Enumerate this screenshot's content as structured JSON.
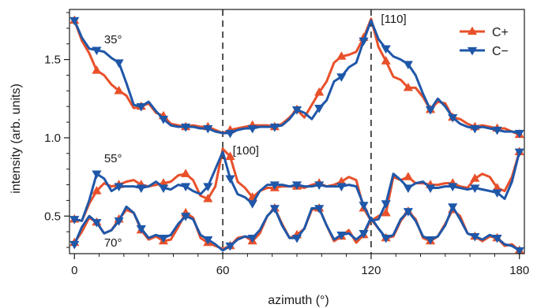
{
  "chart_data": {
    "type": "line",
    "xlabel": "azimuth (°)",
    "ylabel": "intensity (arb. units)",
    "xlim": [
      -2,
      182
    ],
    "ylim": [
      0.26,
      1.82
    ],
    "xticks": [
      0,
      60,
      120,
      180
    ],
    "yticks": [
      0.5,
      1.0,
      1.5
    ],
    "xtick_labels": [
      "0",
      "60",
      "120",
      "180"
    ],
    "ytick_labels": [
      "0.5",
      "1.0",
      "1.5"
    ],
    "grid": false,
    "legend_position": "top-right",
    "colors": {
      "c_plus": "#e8502a",
      "c_minus": "#1f57a8"
    },
    "vlines": [
      60,
      120
    ],
    "annotations": [
      {
        "text": "35°",
        "x": 12,
        "y": 1.63
      },
      {
        "text": "55°",
        "x": 12,
        "y": 0.87
      },
      {
        "text": "70°",
        "x": 12,
        "y": 0.33
      },
      {
        "text": "[100]",
        "x": 64,
        "y": 0.92
      },
      {
        "text": "[110]",
        "x": 124,
        "y": 1.76
      }
    ],
    "series": [
      {
        "name": "C+",
        "color": "#e8502a",
        "marker": "triangle-up",
        "groups": [
          {
            "label": "35°",
            "x": [
              0,
              3,
              6,
              9,
              12,
              15,
              18,
              21,
              24,
              27,
              30,
              33,
              36,
              39,
              42,
              45,
              48,
              51,
              54,
              57,
              60,
              63,
              66,
              69,
              72,
              75,
              78,
              81,
              84,
              87,
              90,
              93,
              96,
              99,
              102,
              105,
              108,
              111,
              114,
              117,
              120,
              123,
              126,
              129,
              132,
              135,
              138,
              141,
              144,
              147,
              150,
              153,
              156,
              159,
              162,
              165,
              168,
              171,
              174,
              177,
              180
            ],
            "y": [
              1.75,
              1.62,
              1.54,
              1.43,
              1.4,
              1.34,
              1.3,
              1.27,
              1.19,
              1.2,
              1.22,
              1.16,
              1.14,
              1.09,
              1.08,
              1.07,
              1.08,
              1.07,
              1.07,
              1.05,
              1.03,
              1.05,
              1.06,
              1.07,
              1.08,
              1.08,
              1.08,
              1.07,
              1.09,
              1.13,
              1.18,
              1.13,
              1.21,
              1.29,
              1.36,
              1.48,
              1.52,
              1.53,
              1.55,
              1.64,
              1.76,
              1.58,
              1.49,
              1.39,
              1.37,
              1.32,
              1.32,
              1.26,
              1.18,
              1.23,
              1.22,
              1.13,
              1.12,
              1.09,
              1.07,
              1.08,
              1.07,
              1.06,
              1.06,
              1.04,
              1.02
            ]
          },
          {
            "label": "55°",
            "x": [
              0,
              3,
              6,
              9,
              12,
              15,
              18,
              21,
              24,
              27,
              30,
              33,
              36,
              39,
              42,
              45,
              48,
              51,
              54,
              57,
              60,
              63,
              66,
              69,
              72,
              75,
              78,
              81,
              84,
              87,
              90,
              93,
              96,
              99,
              102,
              105,
              108,
              111,
              114,
              117,
              120,
              123,
              126,
              129,
              132,
              135,
              138,
              141,
              144,
              147,
              150,
              153,
              156,
              159,
              162,
              165,
              168,
              171,
              174,
              177,
              180
            ],
            "y": [
              0.48,
              0.47,
              0.58,
              0.66,
              0.71,
              0.69,
              0.7,
              0.72,
              0.73,
              0.7,
              0.69,
              0.7,
              0.71,
              0.72,
              0.76,
              0.77,
              0.73,
              0.63,
              0.61,
              0.69,
              0.93,
              0.88,
              0.72,
              0.68,
              0.62,
              0.66,
              0.68,
              0.68,
              0.69,
              0.69,
              0.69,
              0.68,
              0.7,
              0.71,
              0.69,
              0.7,
              0.72,
              0.75,
              0.73,
              0.55,
              0.47,
              0.5,
              0.52,
              0.75,
              0.73,
              0.75,
              0.71,
              0.71,
              0.7,
              0.7,
              0.71,
              0.71,
              0.69,
              0.68,
              0.74,
              0.77,
              0.75,
              0.68,
              0.66,
              0.75,
              0.91
            ]
          },
          {
            "label": "70°",
            "x": [
              0,
              3,
              6,
              9,
              12,
              15,
              18,
              21,
              24,
              27,
              30,
              33,
              36,
              39,
              42,
              45,
              48,
              51,
              54,
              57,
              60,
              63,
              66,
              69,
              72,
              75,
              78,
              81,
              84,
              87,
              90,
              93,
              96,
              99,
              102,
              105,
              108,
              111,
              114,
              117,
              120,
              123,
              126,
              129,
              132,
              135,
              138,
              141,
              144,
              147,
              150,
              153,
              156,
              159,
              162,
              165,
              168,
              171,
              174,
              177,
              180
            ],
            "y": [
              0.33,
              0.4,
              0.49,
              0.46,
              0.39,
              0.41,
              0.48,
              0.54,
              0.52,
              0.41,
              0.35,
              0.37,
              0.34,
              0.35,
              0.43,
              0.52,
              0.49,
              0.36,
              0.33,
              0.31,
              0.29,
              0.31,
              0.36,
              0.37,
              0.34,
              0.39,
              0.5,
              0.55,
              0.45,
              0.36,
              0.38,
              0.42,
              0.54,
              0.55,
              0.44,
              0.34,
              0.37,
              0.41,
              0.33,
              0.38,
              0.48,
              0.42,
              0.36,
              0.37,
              0.47,
              0.53,
              0.48,
              0.36,
              0.34,
              0.37,
              0.45,
              0.54,
              0.5,
              0.39,
              0.37,
              0.34,
              0.37,
              0.36,
              0.31,
              0.32,
              0.28
            ]
          }
        ]
      },
      {
        "name": "C−",
        "color": "#1f57a8",
        "marker": "triangle-down",
        "groups": [
          {
            "label": "35°",
            "x": [
              0,
              3,
              6,
              9,
              12,
              15,
              18,
              21,
              24,
              27,
              30,
              33,
              36,
              39,
              42,
              45,
              48,
              51,
              54,
              57,
              60,
              63,
              66,
              69,
              72,
              75,
              78,
              81,
              84,
              87,
              90,
              93,
              96,
              99,
              102,
              105,
              108,
              111,
              114,
              117,
              120,
              123,
              126,
              129,
              132,
              135,
              138,
              141,
              144,
              147,
              150,
              153,
              156,
              159,
              162,
              165,
              168,
              171,
              174,
              177,
              180
            ],
            "y": [
              1.75,
              1.64,
              1.57,
              1.56,
              1.55,
              1.51,
              1.48,
              1.35,
              1.21,
              1.2,
              1.23,
              1.17,
              1.12,
              1.08,
              1.07,
              1.07,
              1.07,
              1.06,
              1.06,
              1.04,
              1.03,
              1.03,
              1.05,
              1.06,
              1.06,
              1.07,
              1.07,
              1.07,
              1.08,
              1.12,
              1.18,
              1.16,
              1.12,
              1.19,
              1.24,
              1.36,
              1.39,
              1.45,
              1.48,
              1.62,
              1.75,
              1.63,
              1.57,
              1.52,
              1.5,
              1.47,
              1.4,
              1.28,
              1.18,
              1.25,
              1.2,
              1.13,
              1.09,
              1.07,
              1.06,
              1.07,
              1.06,
              1.05,
              1.04,
              1.04,
              1.03
            ]
          },
          {
            "label": "55°",
            "x": [
              0,
              3,
              6,
              9,
              12,
              15,
              18,
              21,
              24,
              27,
              30,
              33,
              36,
              39,
              42,
              45,
              48,
              51,
              54,
              57,
              60,
              63,
              66,
              69,
              72,
              75,
              78,
              81,
              84,
              87,
              90,
              93,
              96,
              99,
              102,
              105,
              108,
              111,
              114,
              117,
              120,
              123,
              126,
              129,
              132,
              135,
              138,
              141,
              144,
              147,
              150,
              153,
              156,
              159,
              162,
              165,
              168,
              171,
              174,
              177,
              180
            ],
            "y": [
              0.48,
              0.47,
              0.6,
              0.77,
              0.74,
              0.66,
              0.69,
              0.69,
              0.69,
              0.68,
              0.69,
              0.72,
              0.68,
              0.67,
              0.7,
              0.69,
              0.66,
              0.64,
              0.69,
              0.8,
              0.91,
              0.74,
              0.64,
              0.62,
              0.58,
              0.66,
              0.7,
              0.7,
              0.7,
              0.69,
              0.7,
              0.69,
              0.69,
              0.7,
              0.69,
              0.69,
              0.69,
              0.7,
              0.69,
              0.57,
              0.47,
              0.48,
              0.58,
              0.77,
              0.73,
              0.68,
              0.71,
              0.72,
              0.68,
              0.68,
              0.69,
              0.69,
              0.68,
              0.67,
              0.68,
              0.67,
              0.66,
              0.65,
              0.61,
              0.72,
              0.91
            ]
          },
          {
            "label": "70°",
            "x": [
              0,
              3,
              6,
              9,
              12,
              15,
              18,
              21,
              24,
              27,
              30,
              33,
              36,
              39,
              42,
              45,
              48,
              51,
              54,
              57,
              60,
              63,
              66,
              69,
              72,
              75,
              78,
              81,
              84,
              87,
              90,
              93,
              96,
              99,
              102,
              105,
              108,
              111,
              114,
              117,
              120,
              123,
              126,
              129,
              132,
              135,
              138,
              141,
              144,
              147,
              150,
              153,
              156,
              159,
              162,
              165,
              168,
              171,
              174,
              177,
              180
            ],
            "y": [
              0.32,
              0.43,
              0.5,
              0.46,
              0.39,
              0.41,
              0.47,
              0.56,
              0.52,
              0.42,
              0.36,
              0.38,
              0.36,
              0.38,
              0.45,
              0.5,
              0.48,
              0.38,
              0.35,
              0.32,
              0.28,
              0.31,
              0.35,
              0.37,
              0.36,
              0.41,
              0.5,
              0.55,
              0.44,
              0.36,
              0.36,
              0.42,
              0.55,
              0.55,
              0.44,
              0.35,
              0.38,
              0.39,
              0.35,
              0.39,
              0.49,
              0.42,
              0.36,
              0.38,
              0.48,
              0.53,
              0.47,
              0.37,
              0.35,
              0.37,
              0.44,
              0.56,
              0.48,
              0.39,
              0.37,
              0.35,
              0.38,
              0.36,
              0.32,
              0.31,
              0.28
            ]
          }
        ]
      }
    ]
  }
}
